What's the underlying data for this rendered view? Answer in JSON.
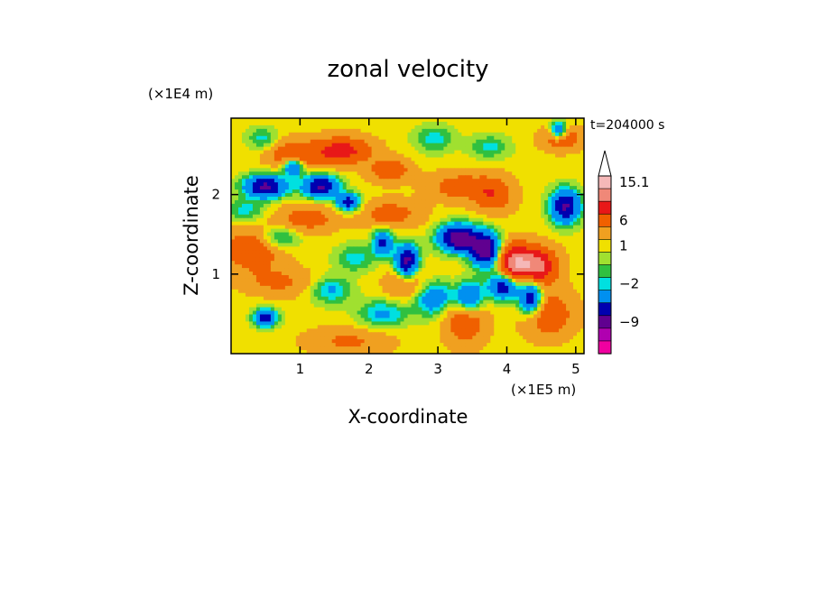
{
  "chart_data": {
    "type": "heatmap",
    "title": "zonal velocity",
    "xlabel": "X-coordinate",
    "ylabel": "Z-coordinate",
    "x_unit_label": "(×1E5 m)",
    "y_unit_label": "(×1E4 m)",
    "time_label": "t=204000 s",
    "xlim": [
      0,
      5.12
    ],
    "ylim": [
      0,
      2.96
    ],
    "x_ticks": [
      1,
      2,
      3,
      4,
      5
    ],
    "y_ticks": [
      1,
      2
    ],
    "colorbar": {
      "levels_top_to_bottom": [
        15.1,
        12,
        9,
        6,
        3,
        1,
        0,
        -1,
        -2,
        -3,
        -6,
        -9,
        -12,
        -15.1
      ],
      "colors_top_to_bottom": [
        "#f5b8b8",
        "#f08878",
        "#e81818",
        "#f06000",
        "#f0a020",
        "#f0e000",
        "#a0e030",
        "#30c040",
        "#00e0e0",
        "#0090f0",
        "#0000b0",
        "#600090",
        "#b000b0",
        "#f000a0"
      ],
      "labels": [
        {
          "value": 15.1,
          "text": "15.1"
        },
        {
          "value": 6,
          "text": "6"
        },
        {
          "value": 1,
          "text": "1"
        },
        {
          "value": -2,
          "text": "−2"
        },
        {
          "value": -9,
          "text": "−9"
        }
      ],
      "extend": "max"
    },
    "features": [
      {
        "x": 0.9,
        "z": 2.5,
        "sigma_x": 0.25,
        "sigma_z": 0.12,
        "value": 5
      },
      {
        "x": 1.6,
        "z": 2.55,
        "sigma_x": 0.3,
        "sigma_z": 0.12,
        "value": 7
      },
      {
        "x": 0.3,
        "z": 1.3,
        "sigma_x": 0.3,
        "sigma_z": 0.18,
        "value": 5
      },
      {
        "x": 0.7,
        "z": 0.9,
        "sigma_x": 0.35,
        "sigma_z": 0.12,
        "value": 3
      },
      {
        "x": 1.1,
        "z": 1.7,
        "sigma_x": 0.3,
        "sigma_z": 0.12,
        "value": 4
      },
      {
        "x": 2.3,
        "z": 1.75,
        "sigma_x": 0.3,
        "sigma_z": 0.12,
        "value": 4
      },
      {
        "x": 2.3,
        "z": 2.3,
        "sigma_x": 0.2,
        "sigma_z": 0.1,
        "value": 5
      },
      {
        "x": 3.3,
        "z": 2.1,
        "sigma_x": 0.3,
        "sigma_z": 0.12,
        "value": 4
      },
      {
        "x": 4.1,
        "z": 1.15,
        "sigma_x": 0.18,
        "sigma_z": 0.16,
        "value": 10
      },
      {
        "x": 4.45,
        "z": 1.1,
        "sigma_x": 0.2,
        "sigma_z": 0.16,
        "value": 9
      },
      {
        "x": 4.8,
        "z": 2.7,
        "sigma_x": 0.2,
        "sigma_z": 0.1,
        "value": 5
      },
      {
        "x": 4.6,
        "z": 0.5,
        "sigma_x": 0.25,
        "sigma_z": 0.2,
        "value": 5
      },
      {
        "x": 3.4,
        "z": 0.5,
        "sigma_x": 0.2,
        "sigma_z": 0.25,
        "value": 6
      },
      {
        "x": 2.55,
        "z": 0.9,
        "sigma_x": 0.2,
        "sigma_z": 0.15,
        "value": 4
      },
      {
        "x": 3.8,
        "z": 2.0,
        "sigma_x": 0.2,
        "sigma_z": 0.15,
        "value": 5
      },
      {
        "x": 1.7,
        "z": 0.15,
        "sigma_x": 0.4,
        "sigma_z": 0.12,
        "value": 3
      },
      {
        "x": 0.45,
        "z": 2.7,
        "sigma_x": 0.15,
        "sigma_z": 0.1,
        "value": -3
      },
      {
        "x": 0.5,
        "z": 2.1,
        "sigma_x": 0.22,
        "sigma_z": 0.1,
        "value": -10
      },
      {
        "x": 0.9,
        "z": 2.35,
        "sigma_x": 0.1,
        "sigma_z": 0.08,
        "value": -8
      },
      {
        "x": 1.3,
        "z": 2.1,
        "sigma_x": 0.18,
        "sigma_z": 0.1,
        "value": -10
      },
      {
        "x": 1.7,
        "z": 1.9,
        "sigma_x": 0.12,
        "sigma_z": 0.08,
        "value": -8
      },
      {
        "x": 2.2,
        "z": 1.4,
        "sigma_x": 0.1,
        "sigma_z": 0.12,
        "value": -7
      },
      {
        "x": 2.55,
        "z": 1.15,
        "sigma_x": 0.12,
        "sigma_z": 0.15,
        "value": -11
      },
      {
        "x": 3.3,
        "z": 1.45,
        "sigma_x": 0.2,
        "sigma_z": 0.12,
        "value": -12
      },
      {
        "x": 3.7,
        "z": 1.3,
        "sigma_x": 0.15,
        "sigma_z": 0.15,
        "value": -12
      },
      {
        "x": 3.45,
        "z": 0.7,
        "sigma_x": 0.15,
        "sigma_z": 0.15,
        "value": -10
      },
      {
        "x": 3.95,
        "z": 0.85,
        "sigma_x": 0.15,
        "sigma_z": 0.12,
        "value": -9
      },
      {
        "x": 4.35,
        "z": 0.7,
        "sigma_x": 0.12,
        "sigma_z": 0.15,
        "value": -10
      },
      {
        "x": 4.85,
        "z": 1.85,
        "sigma_x": 0.15,
        "sigma_z": 0.15,
        "value": -10
      },
      {
        "x": 4.75,
        "z": 2.8,
        "sigma_x": 0.08,
        "sigma_z": 0.08,
        "value": -8
      },
      {
        "x": 2.95,
        "z": 0.7,
        "sigma_x": 0.2,
        "sigma_z": 0.15,
        "value": -6
      },
      {
        "x": 0.5,
        "z": 0.45,
        "sigma_x": 0.12,
        "sigma_z": 0.08,
        "value": -8
      },
      {
        "x": 0.7,
        "z": 1.45,
        "sigma_x": 0.2,
        "sigma_z": 0.1,
        "value": -4
      },
      {
        "x": 0.2,
        "z": 1.8,
        "sigma_x": 0.2,
        "sigma_z": 0.1,
        "value": -3
      },
      {
        "x": 2.2,
        "z": 0.5,
        "sigma_x": 0.25,
        "sigma_z": 0.12,
        "value": -4
      },
      {
        "x": 1.45,
        "z": 0.8,
        "sigma_x": 0.2,
        "sigma_z": 0.12,
        "value": -4
      },
      {
        "x": 2.95,
        "z": 2.7,
        "sigma_x": 0.2,
        "sigma_z": 0.12,
        "value": -3
      },
      {
        "x": 3.75,
        "z": 2.6,
        "sigma_x": 0.2,
        "sigma_z": 0.1,
        "value": -3
      },
      {
        "x": 1.8,
        "z": 1.2,
        "sigma_x": 0.2,
        "sigma_z": 0.12,
        "value": -3
      }
    ]
  }
}
